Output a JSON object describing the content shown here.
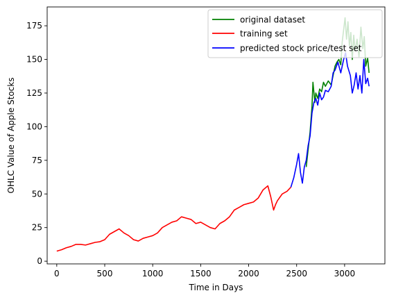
{
  "chart_data": {
    "type": "line",
    "title": "",
    "xlabel": "Time in Days",
    "ylabel": "OHLC Value of Apple Stocks",
    "xlim": [
      -100,
      3420
    ],
    "ylim": [
      -2,
      189
    ],
    "xticks": [
      0,
      500,
      1000,
      1500,
      2000,
      2500,
      3000
    ],
    "yticks": [
      0,
      25,
      50,
      75,
      100,
      125,
      150,
      175
    ],
    "grid": false,
    "legend_position": "top-right",
    "series": [
      {
        "name": "original dataset",
        "color": "#008000",
        "x": [
          2600,
          2640,
          2660,
          2670,
          2690,
          2700,
          2720,
          2740,
          2760,
          2780,
          2800,
          2830,
          2860,
          2880,
          2900,
          2920,
          2940,
          2960,
          2975,
          2990,
          3005,
          3020,
          3035,
          3050,
          3065,
          3080,
          3095,
          3110,
          3130,
          3150,
          3170,
          3190,
          3205,
          3220,
          3240,
          3255
        ],
        "y": [
          70,
          96,
          115,
          133,
          118,
          125,
          121,
          128,
          126,
          133,
          130,
          134,
          131,
          138,
          145,
          148,
          150,
          146,
          163,
          172,
          181,
          165,
          178,
          160,
          170,
          150,
          168,
          156,
          165,
          152,
          174,
          158,
          167,
          145,
          151,
          140
        ]
      },
      {
        "name": "training set",
        "color": "#ff0000",
        "x": [
          0,
          50,
          100,
          150,
          200,
          250,
          300,
          350,
          400,
          450,
          500,
          550,
          600,
          650,
          700,
          750,
          800,
          850,
          900,
          950,
          1000,
          1050,
          1100,
          1150,
          1200,
          1250,
          1300,
          1350,
          1400,
          1450,
          1500,
          1550,
          1600,
          1650,
          1700,
          1750,
          1800,
          1850,
          1900,
          1950,
          2000,
          2050,
          2100,
          2150,
          2200,
          2230,
          2260,
          2280,
          2300,
          2350,
          2400,
          2440
        ],
        "y": [
          7.5,
          8.5,
          10,
          11,
          12.5,
          12.5,
          12,
          13,
          14,
          14.5,
          16,
          20,
          22,
          24,
          21,
          19,
          16,
          15,
          17,
          18,
          19,
          21,
          25,
          27,
          29,
          30,
          33,
          32,
          31,
          28,
          29,
          27,
          25,
          24,
          28,
          30,
          33,
          38,
          40,
          42,
          43,
          44,
          47,
          53,
          56,
          48,
          38,
          42,
          45,
          50,
          52,
          55
        ]
      },
      {
        "name": "predicted stock price/test set",
        "color": "#0000ff",
        "x": [
          2440,
          2470,
          2500,
          2520,
          2540,
          2560,
          2580,
          2600,
          2620,
          2640,
          2660,
          2680,
          2700,
          2720,
          2740,
          2760,
          2780,
          2800,
          2830,
          2860,
          2880,
          2900,
          2930,
          2960,
          2990,
          3010,
          3030,
          3060,
          3080,
          3100,
          3120,
          3140,
          3160,
          3180,
          3200,
          3220,
          3240,
          3255
        ],
        "y": [
          55,
          62,
          72,
          80,
          66,
          58,
          70,
          75,
          86,
          93,
          110,
          118,
          121,
          116,
          125,
          120,
          122,
          127,
          126,
          130,
          140,
          142,
          148,
          140,
          150,
          155,
          145,
          138,
          125,
          131,
          140,
          128,
          138,
          125,
          150,
          132,
          136,
          130
        ]
      }
    ]
  }
}
